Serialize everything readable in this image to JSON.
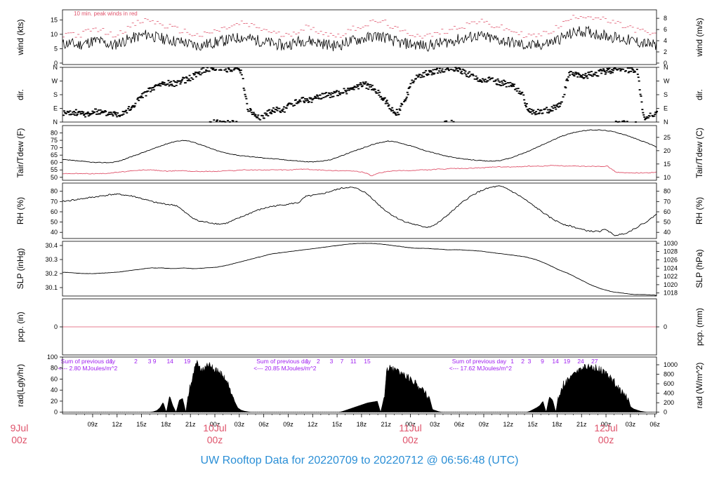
{
  "footer_title": "UW Rooftop Data for 20220709  to  20220712 @ 06:56:48  (UTC)",
  "colors": {
    "series": "#000000",
    "secondary": "#df536b",
    "note": "#a020f0",
    "date": "#df536b",
    "footer": "#2b8fd6"
  },
  "x_axis": {
    "hour_ticks": [
      "09z",
      "12z",
      "15z",
      "18z",
      "21z",
      "00z",
      "03z",
      "06z",
      "09z",
      "12z",
      "15z",
      "18z",
      "21z",
      "00z",
      "03z",
      "06z",
      "09z",
      "12z",
      "15z",
      "18z",
      "21z",
      "00z",
      "03z",
      "06z"
    ],
    "date_labels": [
      {
        "date": "9Jul",
        "hour": "00z",
        "t": 0
      },
      {
        "date": "10Jul",
        "hour": "00z",
        "t": 24
      },
      {
        "date": "11Jul",
        "hour": "00z",
        "t": 48
      },
      {
        "date": "12Jul",
        "hour": "00z",
        "t": 72
      }
    ]
  },
  "chart_data": [
    {
      "type": "line",
      "id": "wind",
      "ylabel": "wind (kts)",
      "ylabel_right": "wind (m/s)",
      "note": "10 min. peak winds in red",
      "yticks": [
        0,
        5,
        10,
        15
      ],
      "yticks_right": [
        0,
        2,
        4,
        6,
        8
      ],
      "ylim": [
        -0.5,
        18.5
      ],
      "series": [
        {
          "values": [
            6.5,
            7.0,
            6.2,
            6.8,
            7.5,
            7.8,
            6.9,
            6.0,
            7.2,
            8.0,
            8.8,
            9.5,
            10.0,
            9.0,
            8.5,
            8.0,
            7.5,
            7.2,
            6.5,
            6.0,
            6.5,
            7.0,
            7.5,
            8.0,
            8.5,
            9.0,
            8.5,
            8.0,
            7.5,
            7.0,
            6.5,
            6.0,
            6.8,
            7.5,
            8.0,
            7.5,
            7.0,
            6.5,
            6.0,
            6.5,
            7.5,
            8.0,
            8.5,
            9.0,
            9.5,
            9.0,
            8.0,
            7.0,
            6.8,
            6.5,
            6.2,
            6.0,
            6.5,
            7.0,
            7.5,
            8.0,
            8.5,
            9.0,
            9.5,
            9.0,
            8.5,
            8.0,
            7.5,
            7.0,
            6.5,
            6.0,
            6.0,
            6.5,
            7.0,
            8.0,
            9.0,
            10.0,
            11.0,
            11.0,
            10.5,
            10.0,
            9.5,
            9.0,
            8.5,
            8.0,
            7.5,
            7.0,
            6.5,
            6.0
          ]
        },
        {
          "values": [
            10.0,
            10.5,
            9.5,
            10.5,
            11.5,
            12.0,
            10.5,
            9.5,
            11.0,
            12.0,
            13.5,
            14.5,
            15.0,
            14.0,
            13.0,
            12.5,
            11.5,
            11.0,
            10.0,
            9.5,
            10.0,
            11.0,
            11.5,
            12.5,
            13.0,
            14.0,
            13.0,
            12.5,
            11.5,
            11.0,
            10.0,
            9.5,
            10.5,
            11.5,
            12.5,
            11.5,
            11.0,
            10.0,
            9.5,
            10.0,
            11.5,
            12.5,
            13.0,
            14.0,
            14.5,
            14.0,
            12.5,
            11.0,
            10.5,
            10.0,
            9.5,
            9.5,
            10.0,
            11.0,
            11.5,
            12.5,
            13.0,
            14.0,
            14.5,
            14.0,
            13.0,
            12.5,
            11.5,
            11.0,
            10.0,
            9.5,
            9.5,
            10.0,
            11.0,
            12.5,
            14.0,
            15.5,
            16.5,
            16.5,
            16.0,
            15.5,
            14.5,
            14.0,
            13.0,
            12.5,
            11.5,
            11.0,
            10.0,
            9.5
          ]
        }
      ]
    },
    {
      "type": "scatter",
      "id": "direction",
      "ylabel": "dir.",
      "ylabel_right": "dir.",
      "ytick_labels": [
        "N",
        "E",
        "S",
        "W",
        "N"
      ],
      "ylim": [
        0,
        360
      ],
      "series": [
        {
          "values": [
            60,
            55,
            65,
            50,
            60,
            70,
            58,
            62,
            50,
            75,
            90,
            150,
            190,
            220,
            245,
            260,
            250,
            270,
            280,
            300,
            330,
            350,
            355,
            358,
            350,
            355,
            340,
            90,
            45,
            30,
            60,
            80,
            70,
            110,
            130,
            150,
            140,
            160,
            170,
            180,
            190,
            200,
            210,
            230,
            250,
            230,
            200,
            150,
            80,
            60,
            150,
            260,
            300,
            320,
            330,
            340,
            350,
            355,
            340,
            320,
            300,
            280,
            280,
            270,
            260,
            250,
            230,
            200,
            90,
            60,
            70,
            80,
            100,
            130,
            320,
            310,
            300,
            310,
            320,
            330,
            340,
            350,
            355,
            340,
            350,
            20,
            50,
            60
          ]
        }
      ]
    },
    {
      "type": "line",
      "id": "temperature",
      "ylabel": "Tair/Tdew (F)",
      "ylabel_right": "Tair/Tdew (C)",
      "yticks": [
        50,
        55,
        60,
        65,
        70,
        75,
        80
      ],
      "yticks_right": [
        10,
        15,
        20,
        25
      ],
      "ylim": [
        48,
        85
      ],
      "series": [
        {
          "values": [
            62,
            61.5,
            61,
            60.5,
            60,
            60,
            60,
            61,
            63,
            65,
            67,
            69,
            71,
            73,
            74.5,
            75,
            74,
            72,
            70,
            68,
            66.5,
            65.5,
            64.5,
            64,
            63.5,
            63,
            62.5,
            62,
            61.5,
            61,
            60.5,
            60.5,
            61,
            62,
            64,
            66,
            68,
            70,
            72,
            73.5,
            74.5,
            74,
            72.5,
            71,
            69,
            67.5,
            66,
            64.5,
            63.5,
            62.5,
            62,
            61.5,
            61,
            61,
            61.5,
            63,
            65,
            67,
            69.5,
            72,
            74.5,
            77,
            79,
            80.5,
            81.5,
            82,
            82,
            81.5,
            80.5,
            79,
            77,
            75,
            73,
            70.5
          ]
        },
        {
          "values": [
            52.5,
            52.5,
            52.5,
            52.5,
            52.5,
            52.5,
            53,
            53.5,
            54,
            54.5,
            55,
            55,
            54.5,
            54,
            54.5,
            54.5,
            54,
            54,
            54,
            54,
            54.5,
            54.5,
            55,
            55,
            55,
            55,
            55,
            55,
            55,
            55.5,
            55.5,
            55,
            55,
            54.5,
            54.5,
            54.5,
            54,
            53.5,
            51,
            53,
            54,
            54.5,
            54.5,
            54.5,
            55,
            55,
            55.5,
            55.5,
            56,
            56,
            56,
            56.5,
            56.5,
            57,
            57,
            57,
            57,
            57.5,
            57.5,
            57.5,
            58,
            58,
            57.5,
            57.5,
            57.5,
            57.5,
            57.5,
            57.5,
            53.5,
            53,
            53,
            53,
            53,
            53.5
          ]
        }
      ]
    },
    {
      "type": "line",
      "id": "humidity",
      "ylabel": "RH (%)",
      "ylabel_right": "RH (%)",
      "yticks": [
        40,
        50,
        60,
        70,
        80
      ],
      "yticks_right": [
        40,
        50,
        60,
        70,
        80
      ],
      "ylim": [
        34,
        88
      ],
      "series": [
        {
          "values": [
            70,
            71,
            72,
            73,
            74,
            75,
            76,
            77,
            77,
            76,
            75,
            73,
            71,
            69,
            68,
            67,
            66,
            60,
            55,
            51,
            50,
            49,
            48,
            49,
            52,
            55,
            58,
            61,
            63,
            65,
            66,
            67,
            68,
            69,
            75,
            76,
            77,
            79,
            81,
            83,
            84,
            83,
            80,
            75,
            68,
            62,
            57,
            53,
            50,
            48,
            46,
            45,
            47,
            52,
            58,
            64,
            70,
            75,
            79,
            82,
            84,
            85,
            83,
            79,
            75,
            70,
            65,
            60,
            55,
            51,
            48,
            46,
            44,
            42,
            41,
            41,
            43,
            37,
            38,
            40,
            44,
            48,
            52,
            58
          ]
        }
      ]
    },
    {
      "type": "line",
      "id": "pressure",
      "ylabel": "SLP (inHg)",
      "ylabel_right": "SLP (hPa)",
      "yticks": [
        30.1,
        30.2,
        30.3,
        30.4
      ],
      "yticks_right": [
        1018,
        1020,
        1022,
        1024,
        1026,
        1028,
        1030
      ],
      "ylim": [
        30.04,
        30.43
      ],
      "series": [
        {
          "values": [
            30.21,
            30.205,
            30.2,
            30.2,
            30.205,
            30.21,
            30.22,
            30.23,
            30.24,
            30.24,
            30.235,
            30.24,
            30.235,
            30.24,
            30.245,
            30.26,
            30.28,
            30.3,
            30.32,
            30.34,
            30.35,
            30.36,
            30.37,
            30.38,
            30.39,
            30.4,
            30.41,
            30.415,
            30.415,
            30.41,
            30.4,
            30.39,
            30.38,
            30.38,
            30.375,
            30.37,
            30.37,
            30.365,
            30.36,
            30.35,
            30.34,
            30.33,
            30.32,
            30.3,
            30.27,
            30.23,
            30.2,
            30.16,
            30.12,
            30.09,
            30.07,
            30.06,
            30.05,
            30.05,
            30.045
          ]
        }
      ]
    },
    {
      "type": "line",
      "id": "precipitation",
      "ylabel": "pcp. (in)",
      "ylabel_right": "pcp. (mm)",
      "yticks": [
        0
      ],
      "yticks_right": [
        0
      ],
      "ylim": [
        -0.5,
        0.5
      ],
      "series": [
        {
          "values": [
            0,
            0
          ]
        }
      ]
    },
    {
      "type": "area",
      "id": "radiation",
      "ylabel": "rad(Lgly/hr)",
      "ylabel_right": "rad (W/m^2)",
      "yticks": [
        0,
        20,
        40,
        60,
        80,
        100
      ],
      "yticks_right": [
        0,
        200,
        400,
        600,
        800,
        1000
      ],
      "ylim": [
        -3,
        100
      ],
      "annotations": [
        {
          "line1": "Sum of previous day",
          "line2": "<--- 2.80 MJoules/m^2",
          "t": -1
        },
        {
          "line1": "Sum of previous day",
          "line2": "<--- 20.85 MJoules/m^2",
          "t": 23
        },
        {
          "line1": "Sum of previous day",
          "line2": "<--- 17.62 MJoules/m^2",
          "t": 47
        }
      ],
      "hour_markers": [
        {
          "label": "1",
          "t": 6
        },
        {
          "label": "2",
          "t": 9
        },
        {
          "label": "3",
          "t": 10.7
        },
        {
          "label": "9",
          "t": 11.3
        },
        {
          "label": "14",
          "t": 13.2
        },
        {
          "label": "19",
          "t": 15.3
        },
        {
          "label": "1",
          "t": 30
        },
        {
          "label": "2",
          "t": 31.4
        },
        {
          "label": "3",
          "t": 33
        },
        {
          "label": "7",
          "t": 34.3
        },
        {
          "label": "11",
          "t": 35.7
        },
        {
          "label": "15",
          "t": 37.4
        },
        {
          "label": "1",
          "t": 55.2
        },
        {
          "label": "2",
          "t": 56.5
        },
        {
          "label": "3",
          "t": 57.3
        },
        {
          "label": "9",
          "t": 58.9
        },
        {
          "label": "14",
          "t": 60.5
        },
        {
          "label": "19",
          "t": 61.9
        },
        {
          "label": "24",
          "t": 63.6
        },
        {
          "label": "27",
          "t": 65.3
        }
      ],
      "series": [
        {
          "values": [
            0,
            0,
            0,
            0,
            0,
            0,
            0,
            0,
            0,
            0,
            0,
            0,
            0,
            0,
            0,
            0,
            0,
            0,
            0,
            0,
            0,
            0,
            0,
            0,
            0,
            0,
            0,
            0,
            1,
            3,
            8,
            18,
            0,
            30,
            12,
            0,
            22,
            25,
            0,
            45,
            70,
            98,
            92,
            85,
            88,
            95,
            90,
            85,
            80,
            75,
            72,
            60,
            40,
            20,
            8,
            4,
            2,
            1,
            0,
            0,
            0,
            0,
            0,
            0,
            0,
            0,
            0,
            0,
            0,
            0,
            0,
            0,
            0,
            0,
            0,
            0,
            0,
            0,
            0,
            0,
            0,
            0,
            0,
            0,
            0,
            0,
            1,
            3,
            5,
            7,
            9,
            11,
            13,
            15,
            17,
            18,
            19,
            20,
            0,
            25,
            87,
            86,
            84,
            82,
            79,
            76,
            72,
            68,
            64,
            58,
            52,
            46,
            38,
            28,
            5,
            3,
            1,
            0,
            0,
            0,
            0,
            0,
            0,
            0,
            0,
            0,
            0,
            0,
            0,
            0,
            0,
            0,
            0,
            0,
            0,
            0,
            0,
            0,
            0,
            0,
            0,
            0,
            0,
            0,
            2,
            5,
            8,
            12,
            20,
            0,
            28,
            22,
            0,
            40,
            55,
            62,
            68,
            74,
            79,
            83,
            86,
            88,
            89,
            89,
            88,
            86,
            83,
            79,
            74,
            68,
            62,
            55,
            47,
            40,
            32,
            10,
            6,
            4,
            2,
            1,
            0,
            0,
            0,
            0
          ]
        }
      ]
    }
  ]
}
